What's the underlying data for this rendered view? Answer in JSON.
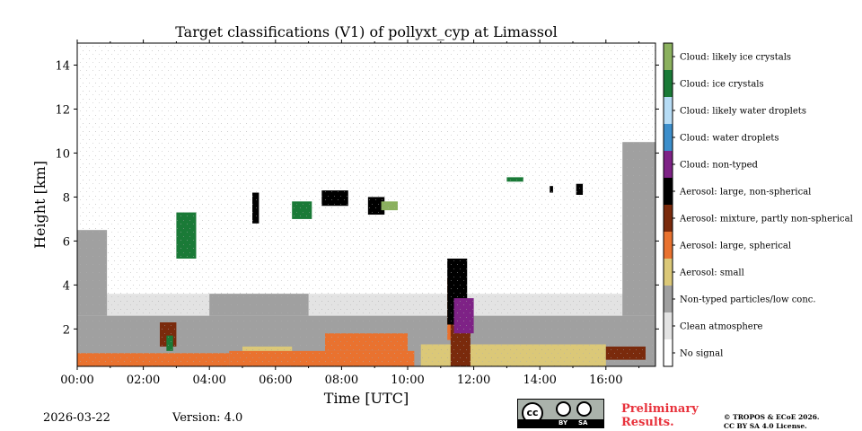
{
  "chart_data": {
    "type": "heatmap",
    "title": "Target classifications (V1) of pollyxt_cyp at Limassol",
    "xlabel": "Time [UTC]",
    "ylabel": "Height [km]",
    "xlim_hours": [
      0,
      17.5
    ],
    "ylim_km": [
      0.3,
      15
    ],
    "x_ticks": [
      {
        "value": 0,
        "label": "00:00"
      },
      {
        "value": 2,
        "label": "02:00"
      },
      {
        "value": 4,
        "label": "04:00"
      },
      {
        "value": 6,
        "label": "06:00"
      },
      {
        "value": 8,
        "label": "08:00"
      },
      {
        "value": 10,
        "label": "10:00"
      },
      {
        "value": 12,
        "label": "12:00"
      },
      {
        "value": 14,
        "label": "14:00"
      },
      {
        "value": 16,
        "label": "16:00"
      }
    ],
    "y_ticks": [
      {
        "value": 2,
        "label": "2"
      },
      {
        "value": 4,
        "label": "4"
      },
      {
        "value": 6,
        "label": "6"
      },
      {
        "value": 8,
        "label": "8"
      },
      {
        "value": 10,
        "label": "10"
      },
      {
        "value": 12,
        "label": "12"
      },
      {
        "value": 14,
        "label": "14"
      }
    ],
    "legend": [
      {
        "label": "Cloud: likely ice crystals",
        "color": "#8bb15e"
      },
      {
        "label": "Cloud: ice crystals",
        "color": "#1a7a37"
      },
      {
        "label": "Cloud: likely water droplets",
        "color": "#b6dcf5"
      },
      {
        "label": "Cloud: water droplets",
        "color": "#3c8ecb"
      },
      {
        "label": "Cloud: non-typed",
        "color": "#7e2286"
      },
      {
        "label": "Aerosol: large, non-spherical",
        "color": "#000000"
      },
      {
        "label": "Aerosol: mixture, partly non-spherical",
        "color": "#7a2a0c"
      },
      {
        "label": "Aerosol: large, spherical",
        "color": "#e9722f"
      },
      {
        "label": "Aerosol: small",
        "color": "#dbc878"
      },
      {
        "label": "Non-typed particles/low conc.",
        "color": "#a0a0a0"
      },
      {
        "label": "Clean atmosphere",
        "color": "#e3e3e3"
      },
      {
        "label": "No signal",
        "color": "#ffffff"
      }
    ],
    "regions": [
      {
        "class": "Clean atmosphere",
        "color": "#e3e3e3",
        "t": [
          0.0,
          17.5
        ],
        "h": [
          0.3,
          3.6
        ]
      },
      {
        "class": "Non-typed particles/low conc.",
        "color": "#a0a0a0",
        "t": [
          0.0,
          17.5
        ],
        "h": [
          0.3,
          2.6
        ]
      },
      {
        "class": "Non-typed particles/low conc.",
        "color": "#a0a0a0",
        "t": [
          0.0,
          0.9
        ],
        "h": [
          2.6,
          6.5
        ]
      },
      {
        "class": "Non-typed particles/low conc.",
        "color": "#a0a0a0",
        "t": [
          4.0,
          7.0
        ],
        "h": [
          2.6,
          3.6
        ]
      },
      {
        "class": "Non-typed particles/low conc.",
        "color": "#a0a0a0",
        "t": [
          16.5,
          17.5
        ],
        "h": [
          2.6,
          10.5
        ]
      },
      {
        "class": "Aerosol: small",
        "color": "#dbc878",
        "t": [
          5.0,
          6.5
        ],
        "h": [
          0.3,
          1.2
        ]
      },
      {
        "class": "Aerosol: small",
        "color": "#dbc878",
        "t": [
          10.4,
          16.0
        ],
        "h": [
          0.3,
          1.3
        ]
      },
      {
        "class": "Aerosol: large, spherical",
        "color": "#e9722f",
        "t": [
          0.0,
          4.6
        ],
        "h": [
          0.3,
          0.9
        ]
      },
      {
        "class": "Aerosol: large, spherical",
        "color": "#e9722f",
        "t": [
          4.6,
          10.2
        ],
        "h": [
          0.3,
          1.0
        ]
      },
      {
        "class": "Aerosol: large, spherical",
        "color": "#e9722f",
        "t": [
          7.5,
          10.0
        ],
        "h": [
          1.0,
          1.8
        ]
      },
      {
        "class": "Aerosol: large, spherical",
        "color": "#e9722f",
        "t": [
          11.2,
          11.7
        ],
        "h": [
          1.5,
          4.3
        ]
      },
      {
        "class": "Aerosol: mixture, partly non-spherical",
        "color": "#7a2a0c",
        "t": [
          11.3,
          11.9
        ],
        "h": [
          0.3,
          2.3
        ]
      },
      {
        "class": "Aerosol: mixture, partly non-spherical",
        "color": "#7a2a0c",
        "t": [
          2.5,
          3.0
        ],
        "h": [
          1.2,
          2.3
        ]
      },
      {
        "class": "Aerosol: mixture, partly non-spherical",
        "color": "#7a2a0c",
        "t": [
          16.0,
          17.2
        ],
        "h": [
          0.6,
          1.2
        ]
      },
      {
        "class": "Aerosol: large, non-spherical",
        "color": "#000000",
        "t": [
          5.3,
          5.5
        ],
        "h": [
          6.8,
          8.2
        ]
      },
      {
        "class": "Aerosol: large, non-spherical",
        "color": "#000000",
        "t": [
          7.4,
          8.2
        ],
        "h": [
          7.6,
          8.3
        ]
      },
      {
        "class": "Aerosol: large, non-spherical",
        "color": "#000000",
        "t": [
          8.8,
          9.3
        ],
        "h": [
          7.2,
          8.0
        ]
      },
      {
        "class": "Aerosol: large, non-spherical",
        "color": "#000000",
        "t": [
          11.2,
          11.8
        ],
        "h": [
          2.2,
          5.2
        ]
      },
      {
        "class": "Aerosol: large, non-spherical",
        "color": "#000000",
        "t": [
          14.3,
          14.4
        ],
        "h": [
          8.2,
          8.5
        ]
      },
      {
        "class": "Aerosol: large, non-spherical",
        "color": "#000000",
        "t": [
          15.1,
          15.3
        ],
        "h": [
          8.1,
          8.6
        ]
      },
      {
        "class": "Cloud: non-typed",
        "color": "#7e2286",
        "t": [
          11.4,
          12.0
        ],
        "h": [
          1.8,
          3.4
        ]
      },
      {
        "class": "Cloud: ice crystals",
        "color": "#1a7a37",
        "t": [
          3.0,
          3.6
        ],
        "h": [
          5.2,
          7.3
        ]
      },
      {
        "class": "Cloud: ice crystals",
        "color": "#1a7a37",
        "t": [
          6.5,
          7.1
        ],
        "h": [
          7.0,
          7.8
        ]
      },
      {
        "class": "Cloud: ice crystals",
        "color": "#1a7a37",
        "t": [
          13.0,
          13.5
        ],
        "h": [
          8.7,
          8.9
        ]
      },
      {
        "class": "Cloud: ice crystals",
        "color": "#1a7a37",
        "t": [
          2.7,
          2.9
        ],
        "h": [
          1.0,
          1.7
        ]
      },
      {
        "class": "Cloud: likely ice crystals",
        "color": "#8bb15e",
        "t": [
          9.2,
          9.7
        ],
        "h": [
          7.4,
          7.8
        ]
      }
    ]
  },
  "footer": {
    "date": "2026-03-22",
    "version": "Version: 4.0",
    "license_badge": {
      "cc": "cc",
      "by": "BY",
      "sa": "SA"
    },
    "preliminary": "Preliminary Results.",
    "copyright_line1": "© TROPOS & ECoE 2026.",
    "copyright_line2": "CC BY SA 4.0 License."
  }
}
